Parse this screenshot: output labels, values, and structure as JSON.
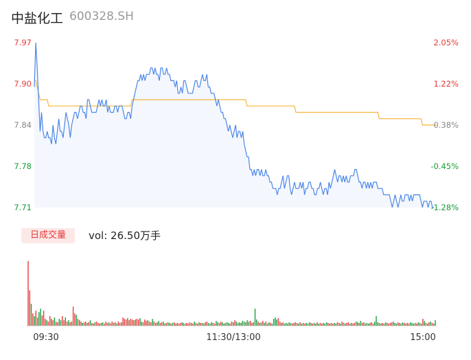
{
  "header": {
    "title": "中盐化工",
    "code": "600328.SH"
  },
  "volume_panel": {
    "badge": "日成交量",
    "vol_text": "vol: 26.50万手"
  },
  "colors": {
    "up": "#e63939",
    "down": "#1a9c3a",
    "neutral": "#888888",
    "price_line": "#4a86e8",
    "avg_line": "#f5b43c"
  },
  "chart_data": [
    {
      "type": "line",
      "title": "",
      "y_ticks_left": [
        "7.97",
        "7.90",
        "7.84",
        "7.78",
        "7.71"
      ],
      "y_ticks_right": [
        "2.05%",
        "1.22%",
        "0.38%",
        "-0.45%",
        "-1.28%"
      ],
      "ylim": [
        7.71,
        7.97
      ],
      "prev_close": 7.81,
      "x_ticks": [
        "09:30",
        "11:30/13:00",
        "15:00"
      ],
      "series": [
        {
          "name": "",
          "values": [
            7.9,
            7.97,
            7.93,
            7.88,
            7.83,
            7.86,
            7.83,
            7.82,
            7.82,
            7.83,
            7.82,
            7.82,
            7.81,
            7.84,
            7.82,
            7.81,
            7.83,
            7.85,
            7.83,
            7.83,
            7.82,
            7.84,
            7.86,
            7.85,
            7.84,
            7.82,
            7.84,
            7.85,
            7.86,
            7.86,
            7.85,
            7.86,
            7.87,
            7.87,
            7.86,
            7.86,
            7.85,
            7.88,
            7.88,
            7.87,
            7.86,
            7.86,
            7.86,
            7.86,
            7.87,
            7.88,
            7.87,
            7.88,
            7.87,
            7.87,
            7.88,
            7.86,
            7.87,
            7.86,
            7.86,
            7.86,
            7.87,
            7.87,
            7.86,
            7.87,
            7.87,
            7.87,
            7.86,
            7.85,
            7.85,
            7.86,
            7.86,
            7.85,
            7.87,
            7.88,
            7.89,
            7.9,
            7.91,
            7.91,
            7.92,
            7.91,
            7.92,
            7.91,
            7.92,
            7.92,
            7.92,
            7.93,
            7.93,
            7.92,
            7.93,
            7.92,
            7.92,
            7.91,
            7.93,
            7.93,
            7.92,
            7.92,
            7.93,
            7.92,
            7.92,
            7.91,
            7.91,
            7.91,
            7.9,
            7.91,
            7.89,
            7.89,
            7.9,
            7.89,
            7.91,
            7.91,
            7.9,
            7.89,
            7.89,
            7.89,
            7.89,
            7.9,
            7.91,
            7.91,
            7.9,
            7.9,
            7.91,
            7.92,
            7.91,
            7.91,
            7.92,
            7.9,
            7.9,
            7.89,
            7.89,
            7.89,
            7.88,
            7.87,
            7.88,
            7.87,
            7.86,
            7.86,
            7.85,
            7.85,
            7.84,
            7.83,
            7.84,
            7.83,
            7.82,
            7.83,
            7.84,
            7.82,
            7.83,
            7.83,
            7.82,
            7.83,
            7.81,
            7.8,
            7.79,
            7.79,
            7.77,
            7.77,
            7.76,
            7.77,
            7.76,
            7.77,
            7.77,
            7.76,
            7.77,
            7.76,
            7.76,
            7.77,
            7.76,
            7.76,
            7.75,
            7.75,
            7.74,
            7.74,
            7.74,
            7.73,
            7.74,
            7.74,
            7.75,
            7.76,
            7.74,
            7.75,
            7.76,
            7.76,
            7.74,
            7.73,
            7.74,
            7.75,
            7.74,
            7.74,
            7.74,
            7.75,
            7.74,
            7.75,
            7.73,
            7.74,
            7.74,
            7.75,
            7.75,
            7.74,
            7.74,
            7.73,
            7.73,
            7.74,
            7.74,
            7.75,
            7.74,
            7.73,
            7.74,
            7.74,
            7.73,
            7.75,
            7.74,
            7.75,
            7.76,
            7.77,
            7.76,
            7.75,
            7.76,
            7.76,
            7.75,
            7.76,
            7.75,
            7.76,
            7.75,
            7.75,
            7.76,
            7.76,
            7.76,
            7.77,
            7.77,
            7.76,
            7.75,
            7.75,
            7.74,
            7.75,
            7.75,
            7.74,
            7.75,
            7.74,
            7.75,
            7.74,
            7.75,
            7.75,
            7.75,
            7.74,
            7.74,
            7.74,
            7.74,
            7.73,
            7.73,
            7.73,
            7.73,
            7.73,
            7.72,
            7.71,
            7.72,
            7.73,
            7.72,
            7.71,
            7.72,
            7.73,
            7.72,
            7.72,
            7.73,
            7.73,
            7.73,
            7.72,
            7.73,
            7.72,
            7.73,
            7.73,
            7.73,
            7.73,
            7.73,
            7.72,
            7.71,
            7.72,
            7.72,
            7.72,
            7.71,
            7.72,
            7.72,
            7.71,
            7.71
          ]
        },
        {
          "name": "",
          "values": [
            7.91,
            7.91,
            7.9,
            7.89,
            7.88,
            7.88,
            7.88,
            7.88,
            7.88,
            7.88,
            7.87,
            7.87,
            7.87,
            7.87,
            7.87,
            7.87,
            7.87,
            7.87,
            7.87,
            7.87,
            7.87,
            7.87,
            7.87,
            7.87,
            7.87,
            7.87,
            7.87,
            7.87,
            7.87,
            7.87,
            7.87,
            7.87,
            7.87,
            7.87,
            7.87,
            7.87,
            7.87,
            7.87,
            7.87,
            7.87,
            7.87,
            7.87,
            7.87,
            7.87,
            7.87,
            7.87,
            7.87,
            7.87,
            7.87,
            7.87,
            7.87,
            7.87,
            7.87,
            7.87,
            7.87,
            7.87,
            7.87,
            7.87,
            7.87,
            7.87,
            7.87,
            7.87,
            7.87,
            7.87,
            7.87,
            7.87,
            7.87,
            7.87,
            7.88,
            7.88,
            7.88,
            7.88,
            7.88,
            7.88,
            7.88,
            7.88,
            7.88,
            7.88,
            7.88,
            7.88,
            7.88,
            7.88,
            7.88,
            7.88,
            7.88,
            7.88,
            7.88,
            7.88,
            7.88,
            7.88,
            7.88,
            7.88,
            7.88,
            7.88,
            7.88,
            7.88,
            7.88,
            7.88,
            7.88,
            7.88,
            7.88,
            7.88,
            7.88,
            7.88,
            7.88,
            7.88,
            7.88,
            7.88,
            7.88,
            7.88,
            7.88,
            7.88,
            7.88,
            7.88,
            7.88,
            7.88,
            7.88,
            7.88,
            7.88,
            7.88,
            7.88,
            7.88,
            7.88,
            7.88,
            7.88,
            7.88,
            7.88,
            7.88,
            7.88,
            7.88,
            7.88,
            7.88,
            7.88,
            7.88,
            7.88,
            7.88,
            7.88,
            7.88,
            7.88,
            7.88,
            7.88,
            7.88,
            7.88,
            7.88,
            7.88,
            7.88,
            7.88,
            7.88,
            7.87,
            7.87,
            7.87,
            7.87,
            7.87,
            7.87,
            7.87,
            7.87,
            7.87,
            7.87,
            7.87,
            7.87,
            7.87,
            7.87,
            7.87,
            7.87,
            7.87,
            7.87,
            7.87,
            7.87,
            7.87,
            7.87,
            7.87,
            7.87,
            7.87,
            7.87,
            7.87,
            7.87,
            7.87,
            7.87,
            7.87,
            7.87,
            7.87,
            7.87,
            7.86,
            7.86,
            7.86,
            7.86,
            7.86,
            7.86,
            7.86,
            7.86,
            7.86,
            7.86,
            7.86,
            7.86,
            7.86,
            7.86,
            7.86,
            7.86,
            7.86,
            7.86,
            7.86,
            7.86,
            7.86,
            7.86,
            7.86,
            7.86,
            7.86,
            7.86,
            7.86,
            7.86,
            7.86,
            7.86,
            7.86,
            7.86,
            7.86,
            7.86,
            7.86,
            7.86,
            7.86,
            7.86,
            7.86,
            7.86,
            7.86,
            7.86,
            7.86,
            7.86,
            7.86,
            7.86,
            7.86,
            7.86,
            7.86,
            7.86,
            7.86,
            7.86,
            7.86,
            7.86,
            7.86,
            7.86,
            7.86,
            7.86,
            7.85,
            7.85,
            7.85,
            7.85,
            7.85,
            7.85,
            7.85,
            7.85,
            7.85,
            7.85,
            7.85,
            7.85,
            7.85,
            7.85,
            7.85,
            7.85,
            7.85,
            7.85,
            7.85,
            7.85,
            7.85,
            7.85,
            7.85,
            7.85,
            7.85,
            7.85,
            7.85,
            7.85,
            7.85,
            7.85,
            7.84,
            7.84,
            7.84,
            7.84,
            7.84,
            7.84,
            7.84,
            7.84,
            7.84,
            7.84,
            7.84
          ]
        }
      ]
    },
    {
      "type": "bar",
      "title": "",
      "volumes": [
        95,
        52,
        32,
        18,
        14,
        22,
        12,
        20,
        25,
        15,
        22,
        10,
        8,
        6,
        14,
        10,
        8,
        12,
        6,
        5,
        10,
        8,
        14,
        8,
        12,
        6,
        8,
        5,
        6,
        28,
        18,
        16,
        10,
        8,
        6,
        4,
        5,
        6,
        4,
        5,
        8,
        4,
        3,
        5,
        6,
        4,
        3,
        4,
        5,
        3,
        6,
        4,
        5,
        3,
        6,
        4,
        5,
        3,
        6,
        4,
        5,
        12,
        10,
        9,
        11,
        8,
        10,
        9,
        8,
        9,
        10,
        9,
        11,
        6,
        5,
        9,
        7,
        8,
        6,
        5,
        10,
        6,
        4,
        5,
        7,
        4,
        5,
        6,
        3,
        4,
        5,
        4,
        3,
        4,
        5,
        3,
        4,
        3,
        4,
        5,
        4,
        3,
        4,
        3,
        5,
        4,
        3,
        6,
        4,
        3,
        5,
        4,
        4,
        3,
        5,
        6,
        4,
        3,
        5,
        4,
        3,
        7,
        5,
        4,
        6,
        5,
        3,
        4,
        5,
        4,
        3,
        6,
        5,
        8,
        6,
        4,
        5,
        4,
        7,
        6,
        5,
        8,
        6,
        7,
        4,
        5,
        25,
        9,
        6,
        4,
        5,
        7,
        4,
        6,
        3,
        5,
        4,
        3,
        10,
        12,
        9,
        11,
        6,
        4,
        5,
        3,
        4,
        3,
        5,
        4,
        3,
        4,
        5,
        4,
        3,
        5,
        3,
        4,
        3,
        4,
        3,
        5,
        4,
        3,
        4,
        3,
        5,
        3,
        4,
        3,
        4,
        3,
        5,
        4,
        3,
        4,
        3,
        4,
        3,
        5,
        4,
        3,
        6,
        4,
        3,
        4,
        5,
        3,
        4,
        3,
        4,
        6,
        5,
        4,
        7,
        4,
        5,
        3,
        4,
        3,
        4,
        5,
        3,
        6,
        14,
        5,
        4,
        3,
        4,
        3,
        5,
        4,
        3,
        4,
        5,
        6,
        4,
        3,
        5,
        4,
        3,
        5,
        4,
        3,
        4,
        3,
        5,
        4,
        3,
        4,
        3,
        5,
        4,
        3,
        10,
        7,
        4,
        3,
        5,
        6,
        4,
        3,
        8
      ],
      "up": [
        1,
        1,
        0,
        1,
        0,
        1,
        1,
        0,
        0,
        1,
        1,
        1,
        0,
        1,
        1,
        0,
        1,
        0,
        1,
        1,
        0,
        0,
        1,
        1,
        0,
        1,
        0,
        1,
        0,
        1,
        1,
        0,
        1,
        0,
        1,
        0,
        1,
        1,
        0,
        1,
        0,
        1,
        1,
        0,
        1,
        1,
        0,
        1,
        0,
        1,
        1,
        1,
        0,
        1,
        1,
        0,
        1,
        0,
        1,
        1,
        0,
        1,
        1,
        1,
        0,
        1,
        1,
        1,
        0,
        1,
        1,
        1,
        0,
        1,
        0,
        1,
        1,
        0,
        1,
        1,
        0,
        1,
        0,
        1,
        0,
        1,
        1,
        0,
        0,
        1,
        0,
        0,
        1,
        0,
        1,
        1,
        0,
        1,
        1,
        0,
        1,
        0,
        1,
        1,
        1,
        0,
        1,
        0,
        1,
        1,
        0,
        1,
        0,
        0,
        1,
        1,
        0,
        0,
        1,
        0,
        1,
        0,
        0,
        1,
        1,
        0,
        0,
        1,
        0,
        0,
        1,
        0,
        1,
        1,
        0,
        0,
        1,
        0,
        0,
        0,
        1,
        0,
        0,
        1,
        1,
        0,
        0,
        0,
        1,
        0,
        0,
        1,
        0,
        1,
        0,
        0,
        1,
        0,
        0,
        0,
        0,
        1,
        1,
        0,
        1,
        0,
        0,
        1,
        0,
        0,
        1,
        1,
        0,
        1,
        0,
        1,
        0,
        0,
        1,
        0,
        0,
        1,
        0,
        1,
        0,
        0,
        1,
        0,
        1,
        1,
        0,
        0,
        0,
        1,
        1,
        0,
        1,
        0,
        0,
        1,
        1,
        0,
        1,
        0,
        0,
        1,
        1,
        0,
        0,
        1,
        1,
        0,
        0,
        1,
        0,
        1,
        0,
        1,
        0,
        0,
        1,
        1,
        1,
        0,
        0,
        0,
        1,
        0,
        1,
        0,
        1,
        0,
        1,
        1,
        0,
        1,
        0,
        0,
        1,
        1,
        0,
        0,
        1,
        0,
        1,
        1,
        0,
        0,
        1,
        0,
        1,
        0,
        0,
        1,
        1,
        0,
        1,
        0,
        1,
        0,
        1,
        0,
        0,
        1,
        0,
        1
      ]
    }
  ]
}
